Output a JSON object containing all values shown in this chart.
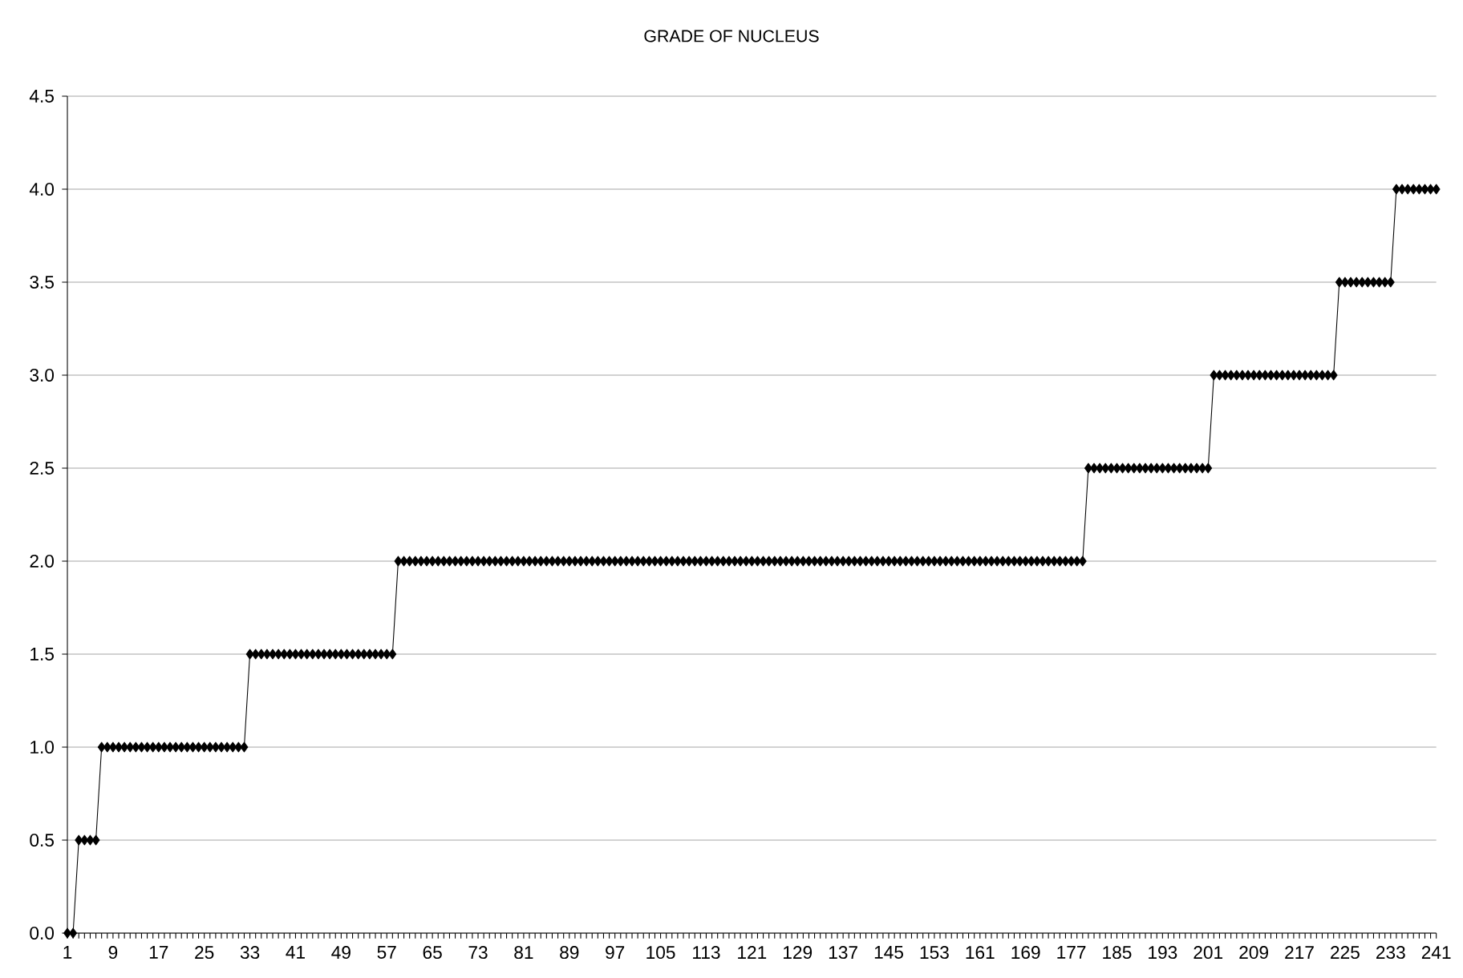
{
  "chart_data": {
    "type": "line",
    "title": "GRADE OF NUCLEUS",
    "categories": [
      "1",
      null,
      null,
      null,
      null,
      null,
      null,
      null,
      "9",
      null,
      null,
      null,
      null,
      null,
      null,
      null,
      "17",
      null,
      null,
      null,
      null,
      null,
      null,
      null,
      "25",
      null,
      null,
      null,
      null,
      null,
      null,
      null,
      "33",
      null,
      null,
      null,
      null,
      null,
      null,
      null,
      "41",
      null,
      null,
      null,
      null,
      null,
      null,
      null,
      "49",
      null,
      null,
      null,
      null,
      null,
      null,
      null,
      "57",
      null,
      null,
      null,
      null,
      null,
      null,
      null,
      "65",
      null,
      null,
      null,
      null,
      null,
      null,
      null,
      "73",
      null,
      null,
      null,
      null,
      null,
      null,
      null,
      "81",
      null,
      null,
      null,
      null,
      null,
      null,
      null,
      "89",
      null,
      null,
      null,
      null,
      null,
      null,
      null,
      "97",
      null,
      null,
      null,
      null,
      null,
      null,
      null,
      "105",
      null,
      null,
      null,
      null,
      null,
      null,
      null,
      "113",
      null,
      null,
      null,
      null,
      null,
      null,
      null,
      "121",
      null,
      null,
      null,
      null,
      null,
      null,
      null,
      "129",
      null,
      null,
      null,
      null,
      null,
      null,
      null,
      "137",
      null,
      null,
      null,
      null,
      null,
      null,
      null,
      "145",
      null,
      null,
      null,
      null,
      null,
      null,
      null,
      "153",
      null,
      null,
      null,
      null,
      null,
      null,
      null,
      "161",
      null,
      null,
      null,
      null,
      null,
      null,
      null,
      "169",
      null,
      null,
      null,
      null,
      null,
      null,
      null,
      "177",
      null,
      null,
      null,
      null,
      null,
      null,
      null,
      "185",
      null,
      null,
      null,
      null,
      null,
      null,
      null,
      "193",
      null,
      null,
      null,
      null,
      null,
      null,
      null,
      "201",
      null,
      null,
      null,
      null,
      null,
      null,
      null,
      "209",
      null,
      null,
      null,
      null,
      null,
      null,
      null,
      "217",
      null,
      null,
      null,
      null,
      null,
      null,
      null,
      "225",
      null,
      null,
      null,
      null,
      null,
      null,
      null,
      "233",
      null,
      null,
      null,
      null,
      null,
      null,
      null,
      "241"
    ],
    "values": [
      0,
      0,
      0.5,
      0.5,
      0.5,
      0.5,
      1,
      1,
      1,
      1,
      1,
      1,
      1,
      1,
      1,
      1,
      1,
      1,
      1,
      1,
      1,
      1,
      1,
      1,
      1,
      1,
      1,
      1,
      1,
      1,
      1,
      1,
      1.5,
      1.5,
      1.5,
      1.5,
      1.5,
      1.5,
      1.5,
      1.5,
      1.5,
      1.5,
      1.5,
      1.5,
      1.5,
      1.5,
      1.5,
      1.5,
      1.5,
      1.5,
      1.5,
      1.5,
      1.5,
      1.5,
      1.5,
      1.5,
      1.5,
      1.5,
      2,
      2,
      2,
      2,
      2,
      2,
      2,
      2,
      2,
      2,
      2,
      2,
      2,
      2,
      2,
      2,
      2,
      2,
      2,
      2,
      2,
      2,
      2,
      2,
      2,
      2,
      2,
      2,
      2,
      2,
      2,
      2,
      2,
      2,
      2,
      2,
      2,
      2,
      2,
      2,
      2,
      2,
      2,
      2,
      2,
      2,
      2,
      2,
      2,
      2,
      2,
      2,
      2,
      2,
      2,
      2,
      2,
      2,
      2,
      2,
      2,
      2,
      2,
      2,
      2,
      2,
      2,
      2,
      2,
      2,
      2,
      2,
      2,
      2,
      2,
      2,
      2,
      2,
      2,
      2,
      2,
      2,
      2,
      2,
      2,
      2,
      2,
      2,
      2,
      2,
      2,
      2,
      2,
      2,
      2,
      2,
      2,
      2,
      2,
      2,
      2,
      2,
      2,
      2,
      2,
      2,
      2,
      2,
      2,
      2,
      2,
      2,
      2,
      2,
      2,
      2,
      2,
      2,
      2,
      2,
      2,
      2.5,
      2.5,
      2.5,
      2.5,
      2.5,
      2.5,
      2.5,
      2.5,
      2.5,
      2.5,
      2.5,
      2.5,
      2.5,
      2.5,
      2.5,
      2.5,
      2.5,
      2.5,
      2.5,
      2.5,
      2.5,
      2.5,
      3,
      3,
      3,
      3,
      3,
      3,
      3,
      3,
      3,
      3,
      3,
      3,
      3,
      3,
      3,
      3,
      3,
      3,
      3,
      3,
      3,
      3,
      3.5,
      3.5,
      3.5,
      3.5,
      3.5,
      3.5,
      3.5,
      3.5,
      3.5,
      3.5,
      4,
      4,
      4,
      4,
      4,
      4,
      4,
      4
    ],
    "color": "#000000",
    "marker": "diamond",
    "grid": "y",
    "ylim": [
      0,
      4.5
    ],
    "yticks": [
      {
        "value": 0,
        "label": "0.0"
      },
      {
        "value": 0.5,
        "label": "0.5"
      },
      {
        "value": 1,
        "label": "1.0"
      },
      {
        "value": 1.5,
        "label": "1.5"
      },
      {
        "value": 2,
        "label": "2.0"
      },
      {
        "value": 2.5,
        "label": "2.5"
      },
      {
        "value": 3,
        "label": "3.0"
      },
      {
        "value": 3.5,
        "label": "3.5"
      },
      {
        "value": 4,
        "label": "4.0"
      },
      {
        "value": 4.5,
        "label": "4.5"
      }
    ]
  }
}
